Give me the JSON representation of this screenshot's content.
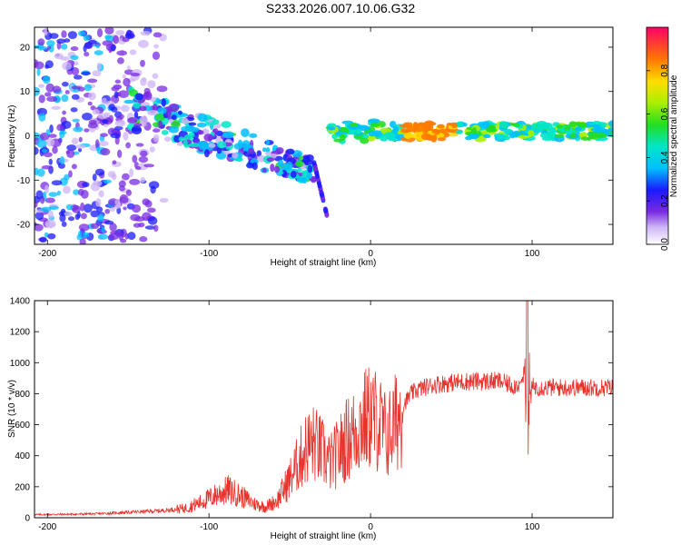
{
  "chart_data": [
    {
      "type": "heatmap",
      "title": "S233.2026.007.10.06.G32",
      "xlabel": "Height of straight line (km)",
      "ylabel": "Frequency (Hz)",
      "xlim": [
        -208,
        150
      ],
      "ylim": [
        -24.5,
        24.5
      ],
      "xticks": [
        -200,
        -100,
        0,
        100
      ],
      "xtick_labels": [
        "-200",
        "-100",
        "0",
        "100"
      ],
      "yticks": [
        -20,
        -10,
        0,
        10,
        20
      ],
      "ytick_labels": [
        "-20",
        "-10",
        "0",
        "10",
        "20"
      ],
      "colorbar": {
        "label": "Normalized spectral amplitude",
        "range": [
          0,
          1
        ],
        "ticks": [
          0.0,
          0.2,
          0.4,
          0.6,
          0.8
        ],
        "tick_labels": [
          "0.0",
          "0.2",
          "0.4",
          "0.6",
          "0.8"
        ]
      },
      "features": [
        {
          "x": [
            -208,
            -120
          ],
          "freq_center": 0,
          "freq_spread": 24,
          "peak": 0.35,
          "description": "diffuse low-amplitude noise"
        },
        {
          "x": [
            -150,
            -35
          ],
          "freq_start": 6,
          "freq_end": -8,
          "peak": 0.45,
          "description": "descending chirp track"
        },
        {
          "x": [
            -25,
            150
          ],
          "freq_center": 1,
          "peak": 0.95,
          "description": "strong constant-frequency band"
        }
      ]
    },
    {
      "type": "line",
      "title": "",
      "xlabel": "Height of straight line (km)",
      "ylabel": "SNR (10 * v/v)",
      "xlim": [
        -208,
        150
      ],
      "ylim": [
        0,
        1400
      ],
      "xticks": [
        -200,
        -100,
        0,
        100
      ],
      "xtick_labels": [
        "-200",
        "-100",
        "0",
        "100"
      ],
      "yticks": [
        0,
        200,
        400,
        600,
        800,
        1000,
        1200,
        1400
      ],
      "ytick_labels": [
        "0",
        "200",
        "400",
        "600",
        "800",
        "1000",
        "1200",
        "1400"
      ],
      "series": [
        {
          "name": "SNR",
          "color": "#e8322c",
          "x": [
            -208,
            -190,
            -170,
            -150,
            -130,
            -115,
            -105,
            -95,
            -88,
            -80,
            -72,
            -65,
            -58,
            -50,
            -45,
            -40,
            -35,
            -30,
            -25,
            -20,
            -15,
            -10,
            -5,
            0,
            5,
            10,
            15,
            20,
            25,
            30,
            40,
            50,
            60,
            70,
            80,
            88,
            93,
            96,
            98,
            100,
            105,
            120,
            135,
            150
          ],
          "values": [
            20,
            22,
            25,
            35,
            45,
            60,
            100,
            150,
            180,
            140,
            90,
            70,
            110,
            250,
            350,
            450,
            480,
            420,
            350,
            420,
            500,
            550,
            620,
            650,
            620,
            520,
            600,
            720,
            800,
            830,
            860,
            870,
            880,
            880,
            880,
            850,
            870,
            900,
            800,
            850,
            840,
            840,
            840,
            840
          ]
        }
      ]
    }
  ],
  "colors": {
    "trace": "#e8322c",
    "axis": "#000000",
    "background": "#ffffff"
  }
}
